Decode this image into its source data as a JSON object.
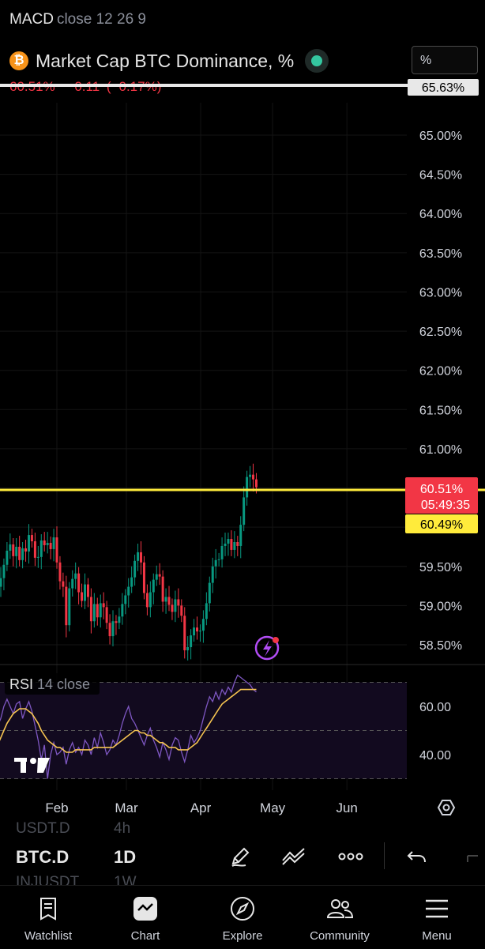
{
  "indicator_macd": {
    "name": "MACD",
    "params": "close 12 26 9"
  },
  "header": {
    "logo_letter": "₿",
    "title": "Market Cap BTC Dominance, %",
    "unit_selector": "%"
  },
  "quote": {
    "last": "60.51%",
    "change": "−0.11",
    "change_pct": "(−0.17%)"
  },
  "price_labels": {
    "top_marker": "65.63%",
    "current": "60.51%",
    "countdown": "05:49:35",
    "alert_line": "60.49%"
  },
  "rsi_label": {
    "name": "RSI",
    "params": "14 close"
  },
  "x_labels": [
    "Feb",
    "Mar",
    "Apr",
    "May",
    "Jun"
  ],
  "toolbar": {
    "ghost_top_symbol": "USDT.D",
    "ghost_top_interval": "4h",
    "symbol": "BTC.D",
    "interval": "1D",
    "ghost_bottom_symbol": "INJUSDT",
    "ghost_bottom_interval": "1W"
  },
  "nav": {
    "watchlist": "Watchlist",
    "chart": "Chart",
    "explore": "Explore",
    "community": "Community",
    "menu": "Menu"
  },
  "colors": {
    "up": "#089981",
    "down": "#f23645",
    "alert_line": "#ffeb3b",
    "rsi_line": "#7e57c2",
    "rsi_ma": "#f5c451"
  },
  "chart_data": [
    {
      "type": "candlestick",
      "title": "Market Cap BTC Dominance, %",
      "y_ticks": [
        "65.00%",
        "64.50%",
        "64.00%",
        "63.50%",
        "63.00%",
        "62.50%",
        "62.00%",
        "61.50%",
        "61.00%",
        "60.50%",
        "60.00%",
        "59.50%",
        "59.00%",
        "58.50%"
      ],
      "ylim": [
        58.3,
        65.75
      ],
      "x_ticks": [
        "Feb",
        "Mar",
        "Apr",
        "May",
        "Jun"
      ],
      "x_range": [
        "2024-01-06",
        "2024-06-15"
      ],
      "series": [
        {
          "values": [
            59.08,
            59.24,
            59.35,
            59.52,
            59.7,
            59.78,
            59.63,
            59.75,
            59.58,
            59.73,
            59.69,
            59.9,
            59.82,
            59.61,
            59.62,
            59.83,
            59.77,
            59.8,
            59.72,
            59.87,
            59.55,
            59.31,
            59.24,
            58.75,
            59.22,
            59.34,
            59.41,
            59.17,
            59.06,
            59.27,
            59.11,
            58.8,
            59.02,
            58.85,
            59.03,
            58.98,
            58.78,
            58.61,
            58.8,
            58.78,
            58.86,
            59.02,
            59.13,
            59.24,
            59.36,
            59.57,
            59.68,
            59.55,
            59.16,
            58.98,
            59.17,
            59.33,
            59.4,
            59.37,
            59.05,
            59.11,
            59.01,
            58.92,
            59.08,
            59.0,
            58.87,
            58.43,
            58.47,
            58.62,
            58.72,
            58.67,
            58.68,
            58.83,
            59.03,
            59.29,
            59.5,
            59.58,
            59.59,
            59.76,
            59.79,
            59.85,
            59.71,
            59.81,
            59.76,
            60.03,
            60.38,
            60.64,
            60.67,
            60.61,
            60.51
          ]
        }
      ]
    },
    {
      "type": "line",
      "title": "RSI 14 close",
      "y_ticks": [
        "60.00",
        "40.00"
      ],
      "ylim": [
        25,
        80
      ],
      "series": [
        {
          "name": "RSI",
          "values": [
            47,
            52,
            55,
            60,
            63,
            60,
            57,
            61,
            62,
            55,
            59,
            62,
            58,
            52,
            46,
            38,
            44,
            30,
            40,
            45,
            40,
            41,
            43,
            36,
            42,
            45,
            41,
            43,
            40,
            46,
            44,
            40,
            47,
            43,
            49,
            45,
            40,
            42,
            46,
            44,
            48,
            53,
            57,
            60,
            55,
            53,
            50,
            47,
            44,
            48,
            51,
            46,
            43,
            39,
            45,
            42,
            38,
            44,
            47,
            46,
            41,
            37,
            42,
            48,
            45,
            47,
            50,
            55,
            60,
            64,
            62,
            66,
            63,
            67,
            65,
            68,
            66,
            70,
            73,
            72,
            71,
            70,
            69,
            67,
            66
          ]
        },
        {
          "name": "RSI-based MA",
          "values": [
            42,
            44,
            47,
            50,
            53,
            55,
            57,
            58,
            59,
            59,
            59,
            58,
            57,
            55,
            53,
            50,
            48,
            46,
            45,
            44,
            43,
            43,
            42,
            41,
            41,
            41,
            42,
            42,
            42,
            42,
            42,
            42,
            43,
            43,
            43,
            43,
            43,
            43,
            43,
            44,
            45,
            46,
            47,
            48,
            49,
            50,
            50,
            49,
            49,
            48,
            48,
            47,
            46,
            45,
            45,
            44,
            43,
            43,
            43,
            42,
            42,
            42,
            42,
            43,
            44,
            45,
            47,
            49,
            51,
            53,
            55,
            57,
            59,
            61,
            62,
            63,
            64,
            65,
            66,
            67,
            67,
            67,
            67,
            67,
            67
          ]
        }
      ]
    }
  ]
}
